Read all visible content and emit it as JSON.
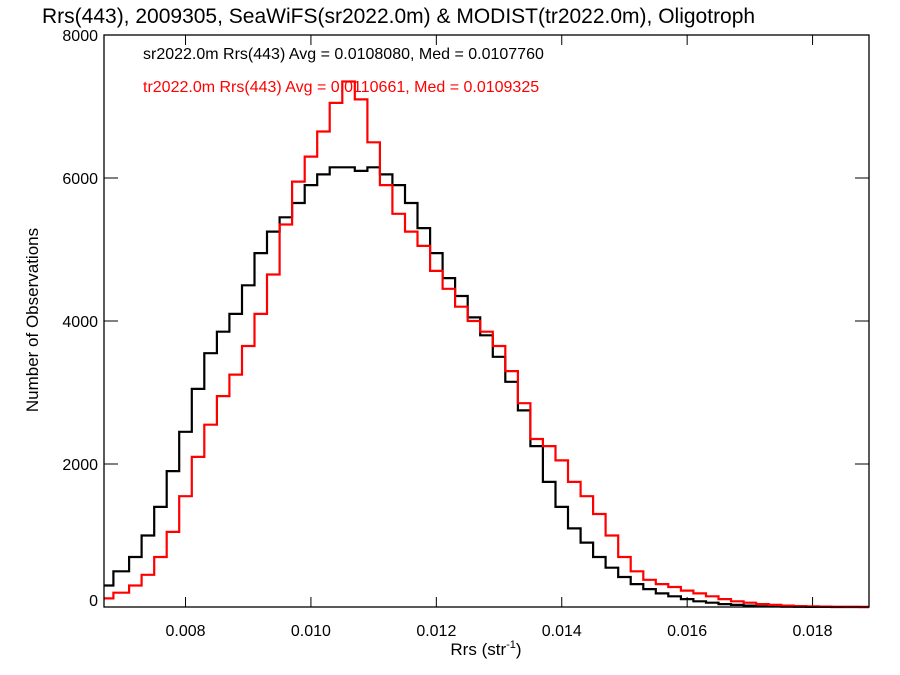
{
  "chart_data": {
    "type": "line",
    "title": "Rrs(443), 2009305, SeaWiFS(sr2022.0m) & MODIST(tr2022.0m), Oligotroph",
    "xlabel": "Rrs (str",
    "xlabel_sup": "-1",
    "xlabel_tail": ")",
    "ylabel": "Number of Observations",
    "xlim": [
      0.0067,
      0.0189
    ],
    "ylim": [
      0,
      8000
    ],
    "x_ticks": [
      "0.008",
      "0.010",
      "0.012",
      "0.014",
      "0.016",
      "0.018"
    ],
    "x_tick_values": [
      0.008,
      0.01,
      0.012,
      0.014,
      0.016,
      0.018
    ],
    "y_ticks": [
      "0",
      "2000",
      "4000",
      "6000",
      "8000"
    ],
    "y_tick_values": [
      0,
      2000,
      4000,
      6000,
      8000
    ],
    "grid": false,
    "legend_placement": "top-left",
    "annotations": [
      "sr2022.0m Rrs(443) Avg = 0.0108080, Med = 0.0107760",
      "tr2022.0m Rrs(443) Avg = 0.0110661, Med = 0.0109325"
    ],
    "series": [
      {
        "name": "sr2022.0m",
        "color": "#000000",
        "x": [
          0.0067,
          0.007,
          0.0072,
          0.0074,
          0.0076,
          0.0078,
          0.008,
          0.0082,
          0.0084,
          0.0086,
          0.0088,
          0.009,
          0.0092,
          0.0094,
          0.0096,
          0.0098,
          0.01,
          0.0102,
          0.0104,
          0.0106,
          0.0108,
          0.011,
          0.0112,
          0.0114,
          0.0116,
          0.0118,
          0.012,
          0.0122,
          0.0124,
          0.0126,
          0.0128,
          0.013,
          0.0132,
          0.0134,
          0.0136,
          0.0138,
          0.014,
          0.0142,
          0.0144,
          0.0146,
          0.0148,
          0.015,
          0.0152,
          0.0154,
          0.0156,
          0.0158,
          0.016,
          0.0162,
          0.0164,
          0.0166,
          0.0168,
          0.017,
          0.0172,
          0.0174,
          0.0176,
          0.0178,
          0.018,
          0.0182,
          0.0184,
          0.0186,
          0.0189
        ],
        "values": [
          300,
          500,
          700,
          1000,
          1400,
          1900,
          2450,
          3050,
          3550,
          3850,
          4100,
          4500,
          4950,
          5250,
          5450,
          5650,
          5900,
          6050,
          6150,
          6150,
          6100,
          6150,
          6050,
          5900,
          5650,
          5300,
          4950,
          4600,
          4350,
          4050,
          3800,
          3500,
          3150,
          2750,
          2250,
          1750,
          1400,
          1100,
          900,
          700,
          550,
          420,
          320,
          250,
          190,
          150,
          110,
          80,
          60,
          40,
          30,
          20,
          10,
          8,
          5,
          3,
          2,
          1,
          0,
          0,
          0
        ]
      },
      {
        "name": "tr2022.0m",
        "color": "#ff0000",
        "x": [
          0.0067,
          0.007,
          0.0072,
          0.0074,
          0.0076,
          0.0078,
          0.008,
          0.0082,
          0.0084,
          0.0086,
          0.0088,
          0.009,
          0.0092,
          0.0094,
          0.0096,
          0.0098,
          0.01,
          0.0102,
          0.0104,
          0.0106,
          0.0108,
          0.011,
          0.0112,
          0.0114,
          0.0116,
          0.0118,
          0.012,
          0.0122,
          0.0124,
          0.0126,
          0.0128,
          0.013,
          0.0132,
          0.0134,
          0.0136,
          0.0138,
          0.014,
          0.0142,
          0.0144,
          0.0146,
          0.0148,
          0.015,
          0.0152,
          0.0154,
          0.0156,
          0.0158,
          0.016,
          0.0162,
          0.0164,
          0.0166,
          0.0168,
          0.017,
          0.0172,
          0.0174,
          0.0176,
          0.0178,
          0.018,
          0.0182,
          0.0184,
          0.0186,
          0.0189
        ],
        "values": [
          120,
          200,
          300,
          450,
          700,
          1050,
          1550,
          2100,
          2550,
          2950,
          3250,
          3650,
          4100,
          4650,
          5350,
          5950,
          6300,
          6650,
          7050,
          7350,
          7100,
          6500,
          5900,
          5500,
          5250,
          5050,
          4700,
          4450,
          4200,
          4000,
          3850,
          3650,
          3300,
          2850,
          2350,
          2250,
          2050,
          1750,
          1550,
          1300,
          1000,
          700,
          500,
          380,
          320,
          280,
          230,
          190,
          150,
          110,
          80,
          60,
          40,
          30,
          20,
          12,
          8,
          5,
          3,
          2,
          0
        ]
      }
    ]
  }
}
